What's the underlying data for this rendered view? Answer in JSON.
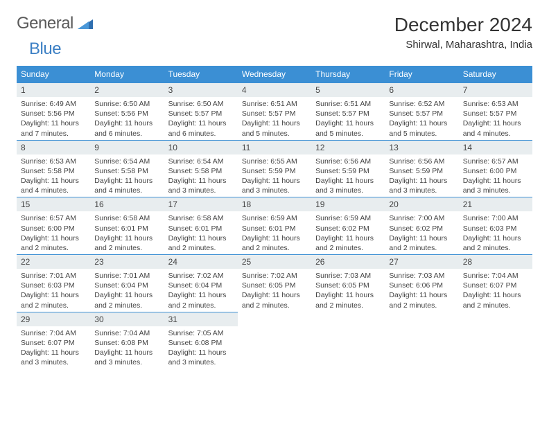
{
  "logo": {
    "text1": "General",
    "text2": "Blue"
  },
  "title": "December 2024",
  "location": "Shirwal, Maharashtra, India",
  "colors": {
    "header_bg": "#3b8fd4",
    "header_text": "#ffffff",
    "daynum_bg": "#e8edef",
    "daynum_border": "#3b8fd4",
    "text": "#444444",
    "logo_gray": "#5a5a5a",
    "logo_blue": "#3b7fc4"
  },
  "weekdays": [
    "Sunday",
    "Monday",
    "Tuesday",
    "Wednesday",
    "Thursday",
    "Friday",
    "Saturday"
  ],
  "weeks": [
    [
      {
        "n": "1",
        "sr": "Sunrise: 6:49 AM",
        "ss": "Sunset: 5:56 PM",
        "dl": "Daylight: 11 hours and 7 minutes."
      },
      {
        "n": "2",
        "sr": "Sunrise: 6:50 AM",
        "ss": "Sunset: 5:56 PM",
        "dl": "Daylight: 11 hours and 6 minutes."
      },
      {
        "n": "3",
        "sr": "Sunrise: 6:50 AM",
        "ss": "Sunset: 5:57 PM",
        "dl": "Daylight: 11 hours and 6 minutes."
      },
      {
        "n": "4",
        "sr": "Sunrise: 6:51 AM",
        "ss": "Sunset: 5:57 PM",
        "dl": "Daylight: 11 hours and 5 minutes."
      },
      {
        "n": "5",
        "sr": "Sunrise: 6:51 AM",
        "ss": "Sunset: 5:57 PM",
        "dl": "Daylight: 11 hours and 5 minutes."
      },
      {
        "n": "6",
        "sr": "Sunrise: 6:52 AM",
        "ss": "Sunset: 5:57 PM",
        "dl": "Daylight: 11 hours and 5 minutes."
      },
      {
        "n": "7",
        "sr": "Sunrise: 6:53 AM",
        "ss": "Sunset: 5:57 PM",
        "dl": "Daylight: 11 hours and 4 minutes."
      }
    ],
    [
      {
        "n": "8",
        "sr": "Sunrise: 6:53 AM",
        "ss": "Sunset: 5:58 PM",
        "dl": "Daylight: 11 hours and 4 minutes."
      },
      {
        "n": "9",
        "sr": "Sunrise: 6:54 AM",
        "ss": "Sunset: 5:58 PM",
        "dl": "Daylight: 11 hours and 4 minutes."
      },
      {
        "n": "10",
        "sr": "Sunrise: 6:54 AM",
        "ss": "Sunset: 5:58 PM",
        "dl": "Daylight: 11 hours and 3 minutes."
      },
      {
        "n": "11",
        "sr": "Sunrise: 6:55 AM",
        "ss": "Sunset: 5:59 PM",
        "dl": "Daylight: 11 hours and 3 minutes."
      },
      {
        "n": "12",
        "sr": "Sunrise: 6:56 AM",
        "ss": "Sunset: 5:59 PM",
        "dl": "Daylight: 11 hours and 3 minutes."
      },
      {
        "n": "13",
        "sr": "Sunrise: 6:56 AM",
        "ss": "Sunset: 5:59 PM",
        "dl": "Daylight: 11 hours and 3 minutes."
      },
      {
        "n": "14",
        "sr": "Sunrise: 6:57 AM",
        "ss": "Sunset: 6:00 PM",
        "dl": "Daylight: 11 hours and 3 minutes."
      }
    ],
    [
      {
        "n": "15",
        "sr": "Sunrise: 6:57 AM",
        "ss": "Sunset: 6:00 PM",
        "dl": "Daylight: 11 hours and 2 minutes."
      },
      {
        "n": "16",
        "sr": "Sunrise: 6:58 AM",
        "ss": "Sunset: 6:01 PM",
        "dl": "Daylight: 11 hours and 2 minutes."
      },
      {
        "n": "17",
        "sr": "Sunrise: 6:58 AM",
        "ss": "Sunset: 6:01 PM",
        "dl": "Daylight: 11 hours and 2 minutes."
      },
      {
        "n": "18",
        "sr": "Sunrise: 6:59 AM",
        "ss": "Sunset: 6:01 PM",
        "dl": "Daylight: 11 hours and 2 minutes."
      },
      {
        "n": "19",
        "sr": "Sunrise: 6:59 AM",
        "ss": "Sunset: 6:02 PM",
        "dl": "Daylight: 11 hours and 2 minutes."
      },
      {
        "n": "20",
        "sr": "Sunrise: 7:00 AM",
        "ss": "Sunset: 6:02 PM",
        "dl": "Daylight: 11 hours and 2 minutes."
      },
      {
        "n": "21",
        "sr": "Sunrise: 7:00 AM",
        "ss": "Sunset: 6:03 PM",
        "dl": "Daylight: 11 hours and 2 minutes."
      }
    ],
    [
      {
        "n": "22",
        "sr": "Sunrise: 7:01 AM",
        "ss": "Sunset: 6:03 PM",
        "dl": "Daylight: 11 hours and 2 minutes."
      },
      {
        "n": "23",
        "sr": "Sunrise: 7:01 AM",
        "ss": "Sunset: 6:04 PM",
        "dl": "Daylight: 11 hours and 2 minutes."
      },
      {
        "n": "24",
        "sr": "Sunrise: 7:02 AM",
        "ss": "Sunset: 6:04 PM",
        "dl": "Daylight: 11 hours and 2 minutes."
      },
      {
        "n": "25",
        "sr": "Sunrise: 7:02 AM",
        "ss": "Sunset: 6:05 PM",
        "dl": "Daylight: 11 hours and 2 minutes."
      },
      {
        "n": "26",
        "sr": "Sunrise: 7:03 AM",
        "ss": "Sunset: 6:05 PM",
        "dl": "Daylight: 11 hours and 2 minutes."
      },
      {
        "n": "27",
        "sr": "Sunrise: 7:03 AM",
        "ss": "Sunset: 6:06 PM",
        "dl": "Daylight: 11 hours and 2 minutes."
      },
      {
        "n": "28",
        "sr": "Sunrise: 7:04 AM",
        "ss": "Sunset: 6:07 PM",
        "dl": "Daylight: 11 hours and 2 minutes."
      }
    ],
    [
      {
        "n": "29",
        "sr": "Sunrise: 7:04 AM",
        "ss": "Sunset: 6:07 PM",
        "dl": "Daylight: 11 hours and 3 minutes."
      },
      {
        "n": "30",
        "sr": "Sunrise: 7:04 AM",
        "ss": "Sunset: 6:08 PM",
        "dl": "Daylight: 11 hours and 3 minutes."
      },
      {
        "n": "31",
        "sr": "Sunrise: 7:05 AM",
        "ss": "Sunset: 6:08 PM",
        "dl": "Daylight: 11 hours and 3 minutes."
      },
      null,
      null,
      null,
      null
    ]
  ]
}
